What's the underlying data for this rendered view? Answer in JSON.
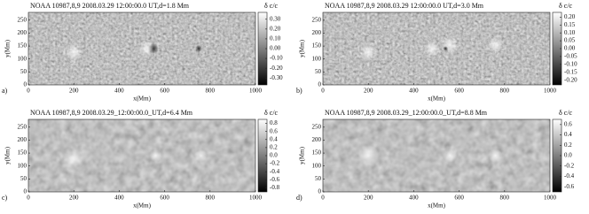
{
  "chart_data": [
    {
      "type": "image",
      "title": "NOAA 10987,8,9 2008.03.29  12:00:00.0  UT,d=1.8 Mm",
      "panel_label": "a)",
      "xlabel": "x(Mm)",
      "ylabel": "y(Mm)",
      "colorbar_label": "δ c/c",
      "xlim": [
        0,
        1000
      ],
      "xticks": [
        0,
        200,
        400,
        600,
        800,
        1000
      ],
      "ylim": [
        0,
        280
      ],
      "yticks": [
        0,
        50,
        100,
        150,
        200,
        250
      ],
      "clim": [
        -0.37,
        0.37
      ],
      "cticks": [
        {
          "value": 0.3,
          "label": "0.30"
        },
        {
          "value": 0.2,
          "label": "0.20"
        },
        {
          "value": 0.1,
          "label": "0.10"
        },
        {
          "value": 0,
          "label": "0.00"
        },
        {
          "value": -0.1,
          "label": "-0.10"
        },
        {
          "value": -0.2,
          "label": "-0.20"
        },
        {
          "value": -0.3,
          "label": "-0.30"
        }
      ]
    },
    {
      "type": "image",
      "title": "NOAA 10987,8,9 2008.03.29  12:00:00.0  UT,d=3.0 Mm",
      "panel_label": "b)",
      "xlabel": "x(Mm)",
      "ylabel": "y(Mm)",
      "colorbar_label": "δ c/c",
      "xlim": [
        0,
        1000
      ],
      "xticks": [
        0,
        200,
        400,
        600,
        800,
        1000
      ],
      "ylim": [
        0,
        280
      ],
      "yticks": [
        0,
        50,
        100,
        150,
        200,
        250
      ],
      "clim": [
        -0.23,
        0.23
      ],
      "cticks": [
        {
          "value": 0.2,
          "label": "0.20"
        },
        0.15,
        {
          "value": 0.1,
          "label": "0.10"
        },
        0.05,
        {
          "value": 0,
          "label": "0.00"
        },
        -0.05,
        {
          "value": -0.1,
          "label": "-0.10"
        },
        -0.15,
        {
          "value": -0.2,
          "label": "-0.20"
        }
      ]
    },
    {
      "type": "image",
      "title": "NOAA 10987,8,9 2008.03.29_12:00:00.0_UT,d=6.4 Mm",
      "panel_label": "c)",
      "xlabel": "x(Mm)",
      "ylabel": "y(Mm)",
      "colorbar_label": "δ c/c",
      "xlim": [
        0,
        1000
      ],
      "xticks": [
        0,
        200,
        400,
        600,
        800,
        1000
      ],
      "ylim": [
        0,
        280
      ],
      "yticks": [
        0,
        50,
        100,
        150,
        200,
        250
      ],
      "clim": [
        -0.9,
        0.9
      ],
      "cticks": [
        0.8,
        0.6,
        0.4,
        0.2,
        {
          "value": 0,
          "label": "0.0"
        },
        -0.2,
        -0.4,
        -0.6,
        -0.8
      ]
    },
    {
      "type": "image",
      "title": "NOAA 10987,8,9 2008.03.29_12:00:00.0_UT,d=8.8 Mm",
      "panel_label": "d)",
      "xlabel": "x(Mm)",
      "ylabel": "y(Mm)",
      "colorbar_label": "δ c/c",
      "xlim": [
        0,
        1000
      ],
      "xticks": [
        0,
        200,
        400,
        600,
        800,
        1000
      ],
      "ylim": [
        0,
        280
      ],
      "yticks": [
        0,
        50,
        100,
        150,
        200,
        250
      ],
      "clim": [
        -0.7,
        0.7
      ],
      "cticks": [
        0.6,
        0.4,
        0.2,
        {
          "value": 0,
          "label": "0.0"
        },
        -0.2,
        -0.4,
        -0.6
      ]
    }
  ]
}
